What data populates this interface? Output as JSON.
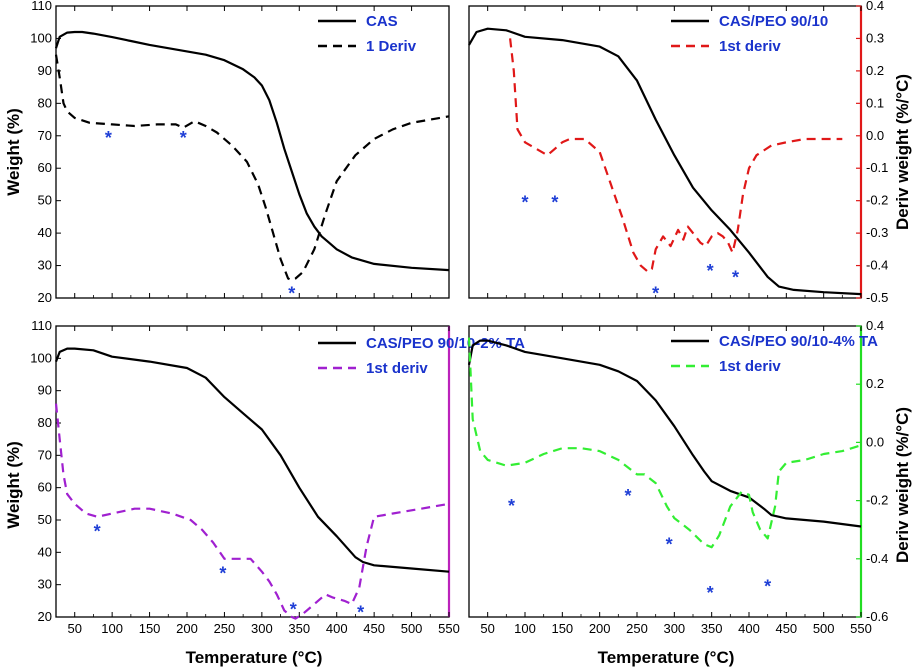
{
  "figure": {
    "x_axis_label": "Temperature (°C)",
    "y_left_label": "Weight (%)",
    "y_right_label": "Deriv weight (%/°C)"
  },
  "chart_data": [
    {
      "type": "line",
      "panel": "top-left",
      "xlim": [
        25,
        550
      ],
      "xticks": [
        50,
        100,
        150,
        200,
        250,
        300,
        350,
        400,
        450,
        500,
        550
      ],
      "show_xticklabels": false,
      "ylim": [
        20,
        110
      ],
      "yticks": [
        20,
        30,
        40,
        50,
        60,
        70,
        80,
        90,
        100,
        110
      ],
      "y2lim": [
        20,
        110
      ],
      "y2_scale": false,
      "series": [
        {
          "name": "CAS",
          "style": "solid",
          "color": "#000000",
          "axis": "left",
          "x": [
            25,
            30,
            40,
            50,
            60,
            75,
            100,
            125,
            150,
            175,
            200,
            225,
            250,
            275,
            290,
            300,
            310,
            320,
            330,
            340,
            350,
            360,
            370,
            380,
            390,
            400,
            420,
            450,
            500,
            550
          ],
          "y": [
            97,
            100.5,
            101.8,
            102,
            102,
            101.5,
            100.4,
            99.2,
            98,
            97,
            96,
            95,
            93.3,
            90.5,
            88,
            85.5,
            81,
            74,
            66,
            59,
            52,
            46,
            42,
            39,
            37,
            35,
            32.5,
            30.5,
            29.3,
            28.6
          ]
        },
        {
          "name": "1 Deriv",
          "style": "dashed",
          "color": "#000000",
          "axis": "left",
          "x": [
            25,
            30,
            35,
            40,
            50,
            70,
            100,
            130,
            160,
            185,
            195,
            210,
            225,
            240,
            260,
            280,
            295,
            305,
            315,
            325,
            335,
            340,
            345,
            355,
            370,
            385,
            400,
            425,
            450,
            475,
            500,
            525,
            550
          ],
          "y": [
            95,
            88,
            80,
            77.5,
            75.5,
            74,
            73.5,
            73,
            73.5,
            73.5,
            72.5,
            74.5,
            73,
            71,
            67,
            62,
            55,
            48,
            40,
            32,
            26,
            25.5,
            26,
            28,
            35,
            46,
            56,
            64,
            69,
            72,
            74,
            75,
            76
          ]
        }
      ],
      "legend": [
        {
          "label": "CAS",
          "style": "solid",
          "color": "#000000"
        },
        {
          "label": "1 Deriv",
          "style": "dashed",
          "color": "#000000"
        }
      ],
      "stars": [
        {
          "x": 95,
          "y": 70
        },
        {
          "x": 195,
          "y": 70
        },
        {
          "x": 340,
          "y": 22
        }
      ]
    },
    {
      "type": "line",
      "panel": "top-right",
      "xlim": [
        25,
        550
      ],
      "xticks": [
        50,
        100,
        150,
        200,
        250,
        300,
        350,
        400,
        450,
        500,
        550
      ],
      "show_xticklabels": false,
      "ylim": [
        20,
        110
      ],
      "yticks": [],
      "y2lim": [
        -0.5,
        0.4
      ],
      "y2ticks": [
        -0.5,
        -0.4,
        -0.3,
        -0.2,
        -0.1,
        0.0,
        0.1,
        0.2,
        0.3,
        0.4
      ],
      "y2ticklabels": [
        "-0.5",
        "-0.4",
        "-0.3",
        "-0.2",
        "-0.1",
        "0.0",
        "0.1",
        "0.2",
        "0.3",
        "0.4"
      ],
      "y2_scale": true,
      "y2_color": "#e01818",
      "series": [
        {
          "name": "CAS/PEO 90/10",
          "style": "solid",
          "color": "#000000",
          "axis": "left",
          "x": [
            25,
            35,
            50,
            75,
            100,
            150,
            200,
            225,
            250,
            275,
            300,
            325,
            350,
            375,
            400,
            425,
            440,
            460,
            500,
            550
          ],
          "y": [
            98,
            102,
            103,
            102.5,
            100.5,
            99.5,
            97.5,
            94.5,
            87,
            75,
            64,
            54,
            47,
            41,
            34,
            26.5,
            23.5,
            22.5,
            21.8,
            21.2
          ]
        },
        {
          "name": "1st deriv",
          "style": "dashed",
          "color": "#e01818",
          "axis": "right",
          "x": [
            80,
            85,
            90,
            100,
            115,
            130,
            140,
            150,
            160,
            180,
            200,
            215,
            230,
            245,
            255,
            265,
            270,
            275,
            285,
            295,
            305,
            312,
            318,
            325,
            335,
            342,
            350,
            358,
            365,
            372,
            378,
            385,
            392,
            400,
            410,
            430,
            450,
            475,
            500,
            525
          ],
          "y": [
            0.3,
            0.2,
            0.02,
            -0.02,
            -0.04,
            -0.06,
            -0.04,
            -0.02,
            -0.01,
            -0.01,
            -0.05,
            -0.15,
            -0.25,
            -0.36,
            -0.4,
            -0.42,
            -0.41,
            -0.35,
            -0.31,
            -0.34,
            -0.29,
            -0.32,
            -0.28,
            -0.3,
            -0.33,
            -0.34,
            -0.31,
            -0.3,
            -0.31,
            -0.33,
            -0.36,
            -0.29,
            -0.18,
            -0.1,
            -0.06,
            -0.03,
            -0.02,
            -0.01,
            -0.01,
            -0.01
          ]
        }
      ],
      "legend": [
        {
          "label": "CAS/PEO 90/10",
          "style": "solid",
          "color": "#000000"
        },
        {
          "label": "1st deriv",
          "style": "dashed",
          "color": "#e01818"
        }
      ],
      "stars": [
        {
          "x": 100,
          "y": 50
        },
        {
          "x": 140,
          "y": 50
        },
        {
          "x": 275,
          "y": 22
        },
        {
          "x": 348,
          "y": 29
        },
        {
          "x": 382,
          "y": 27
        }
      ]
    },
    {
      "type": "line",
      "panel": "bottom-left",
      "xlim": [
        25,
        550
      ],
      "xticks": [
        50,
        100,
        150,
        200,
        250,
        300,
        350,
        400,
        450,
        500,
        550
      ],
      "show_xticklabels": true,
      "ylim": [
        20,
        110
      ],
      "yticks": [
        20,
        30,
        40,
        50,
        60,
        70,
        80,
        90,
        100,
        110
      ],
      "y2lim": [
        20,
        110
      ],
      "y2_scale": false,
      "y2_color": "#bb22bb",
      "series": [
        {
          "name": "CAS/PEO 90/10-2% TA",
          "style": "solid",
          "color": "#000000",
          "axis": "left",
          "x": [
            25,
            30,
            40,
            50,
            75,
            100,
            150,
            200,
            225,
            250,
            275,
            300,
            325,
            350,
            375,
            400,
            425,
            435,
            450,
            500,
            550
          ],
          "y": [
            99,
            102,
            103,
            103,
            102.5,
            100.5,
            99,
            97,
            94,
            88,
            83,
            78,
            70,
            60,
            51,
            45,
            38.5,
            37,
            36,
            35,
            34
          ]
        },
        {
          "name": "1st deriv",
          "style": "dashed",
          "color": "#a020d0",
          "axis": "left",
          "x": [
            25,
            30,
            35,
            40,
            50,
            65,
            80,
            100,
            130,
            150,
            180,
            205,
            220,
            235,
            250,
            265,
            285,
            300,
            310,
            320,
            330,
            340,
            345,
            355,
            370,
            385,
            395,
            410,
            420,
            430,
            440,
            450,
            475,
            500,
            525,
            550
          ],
          "y": [
            86,
            75,
            64,
            58,
            55,
            52,
            51,
            52,
            53.5,
            53.5,
            52,
            50,
            47,
            43,
            38,
            38,
            38,
            34,
            31,
            27,
            22,
            20,
            19.5,
            21,
            24,
            27,
            26,
            25,
            24,
            29,
            42,
            51,
            52,
            53,
            54,
            55
          ]
        }
      ],
      "legend": [
        {
          "label": "CAS/PEO 90/10-2% TA",
          "style": "solid",
          "color": "#000000"
        },
        {
          "label": "1st deriv",
          "style": "dashed",
          "color": "#a020d0"
        }
      ],
      "stars": [
        {
          "x": 80,
          "y": 47
        },
        {
          "x": 248,
          "y": 34
        },
        {
          "x": 342,
          "y": 23
        },
        {
          "x": 432,
          "y": 22
        }
      ]
    },
    {
      "type": "line",
      "panel": "bottom-right",
      "xlim": [
        25,
        550
      ],
      "xticks": [
        50,
        100,
        150,
        200,
        250,
        300,
        350,
        400,
        450,
        500,
        550
      ],
      "show_xticklabels": true,
      "ylim": [
        20,
        110
      ],
      "yticks": [],
      "y2lim": [
        -0.6,
        0.4
      ],
      "y2ticks": [
        -0.6,
        -0.4,
        -0.2,
        0.0,
        0.2,
        0.4
      ],
      "y2ticklabels": [
        "-0.6",
        "-0.4",
        "-0.2",
        "0.0",
        "0.2",
        "0.4"
      ],
      "y2_scale": true,
      "y2_color": "#22dd22",
      "series": [
        {
          "name": "CAS/PEO 90/10-4% TA",
          "style": "solid",
          "color": "#000000",
          "axis": "left",
          "x": [
            25,
            30,
            40,
            50,
            75,
            100,
            150,
            200,
            225,
            250,
            275,
            300,
            325,
            340,
            350,
            375,
            400,
            420,
            430,
            450,
            500,
            550
          ],
          "y": [
            98,
            104,
            105.5,
            105.5,
            104,
            102,
            100,
            98,
            96,
            93,
            87,
            79,
            70,
            65,
            62,
            59,
            57,
            53.5,
            51.5,
            50.5,
            49.5,
            48
          ]
        },
        {
          "name": "1st deriv",
          "style": "dashed",
          "color": "#33ee33",
          "axis": "right",
          "x": [
            25,
            30,
            40,
            50,
            75,
            100,
            125,
            150,
            175,
            200,
            225,
            240,
            250,
            260,
            275,
            290,
            300,
            320,
            340,
            350,
            360,
            375,
            390,
            400,
            405,
            415,
            425,
            435,
            440,
            450,
            475,
            500,
            525,
            550
          ],
          "y": [
            0.36,
            0.08,
            -0.03,
            -0.06,
            -0.08,
            -0.07,
            -0.04,
            -0.02,
            -0.02,
            -0.03,
            -0.06,
            -0.09,
            -0.11,
            -0.11,
            -0.14,
            -0.22,
            -0.26,
            -0.3,
            -0.35,
            -0.36,
            -0.32,
            -0.22,
            -0.17,
            -0.18,
            -0.24,
            -0.3,
            -0.33,
            -0.22,
            -0.1,
            -0.07,
            -0.06,
            -0.04,
            -0.03,
            -0.01
          ]
        }
      ],
      "legend": [
        {
          "label": "CAS/PEO 90/10-4% TA",
          "style": "solid",
          "color": "#000000"
        },
        {
          "label": "1st deriv",
          "style": "dashed",
          "color": "#33ee33"
        }
      ],
      "stars": [
        {
          "x": 82,
          "y": 55
        },
        {
          "x": 238,
          "y": 58
        },
        {
          "x": 293,
          "y": 43
        },
        {
          "x": 348,
          "y": 28
        },
        {
          "x": 425,
          "y": 30
        }
      ]
    }
  ]
}
